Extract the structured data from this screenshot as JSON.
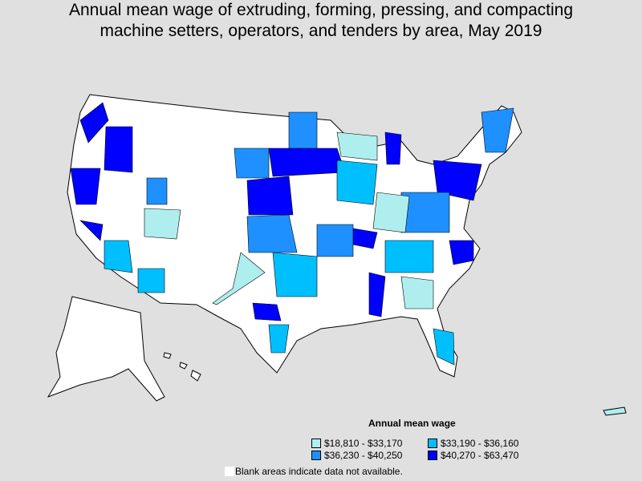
{
  "title_line1": "Annual mean wage of extruding, forming, pressing, and compacting",
  "title_line2": "machine setters, operators, and tenders by area, May 2019",
  "legend": {
    "title": "Annual mean wage",
    "items": [
      {
        "label": "$18,810 - $33,170",
        "color": "#afeeee"
      },
      {
        "label": "$33,190 - $36,160",
        "color": "#00bfff"
      },
      {
        "label": "$36,230 - $40,250",
        "color": "#1e90ff"
      },
      {
        "label": "$40,270 - $63,470",
        "color": "#0000ff"
      }
    ],
    "note": "Blank areas indicate data not available."
  }
}
